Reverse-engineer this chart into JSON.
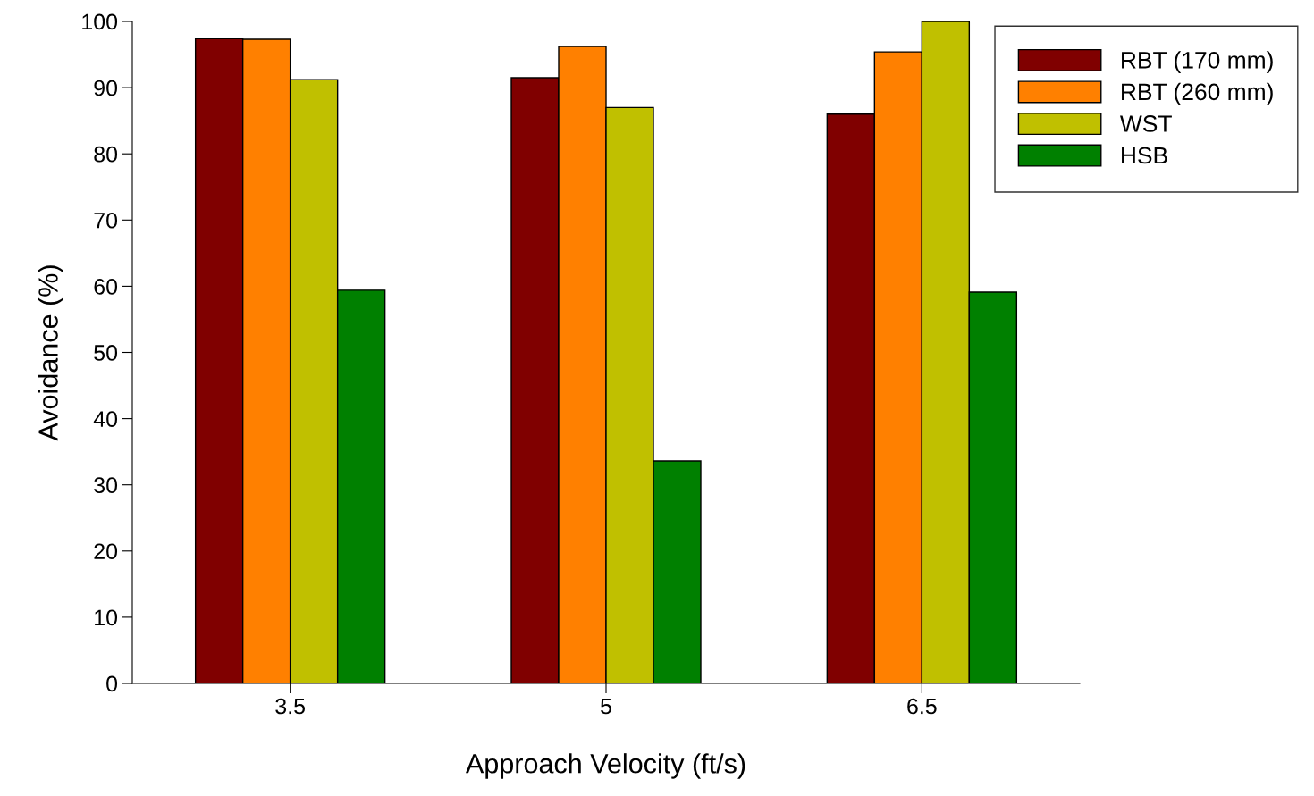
{
  "chart_data": {
    "type": "bar",
    "xlabel": "Approach Velocity (ft/s)",
    "ylabel": "Avoidance (%)",
    "categories": [
      "3.5",
      "5",
      "6.5"
    ],
    "series": [
      {
        "name": "RBT (170 mm)",
        "color": "#800000",
        "values": [
          97.4,
          91.5,
          86.0
        ]
      },
      {
        "name": "RBT (260 mm)",
        "color": "#ff8000",
        "values": [
          97.3,
          96.2,
          95.4
        ]
      },
      {
        "name": "WST",
        "color": "#c0c000",
        "values": [
          91.2,
          87.0,
          100
        ]
      },
      {
        "name": "HSB",
        "color": "#008000",
        "values": [
          59.4,
          33.6,
          59.1
        ]
      }
    ],
    "ylim": [
      0,
      100
    ],
    "yticks": [
      0,
      10,
      20,
      30,
      40,
      50,
      60,
      70,
      80,
      90,
      100
    ],
    "grid": false,
    "legend": "top right"
  }
}
